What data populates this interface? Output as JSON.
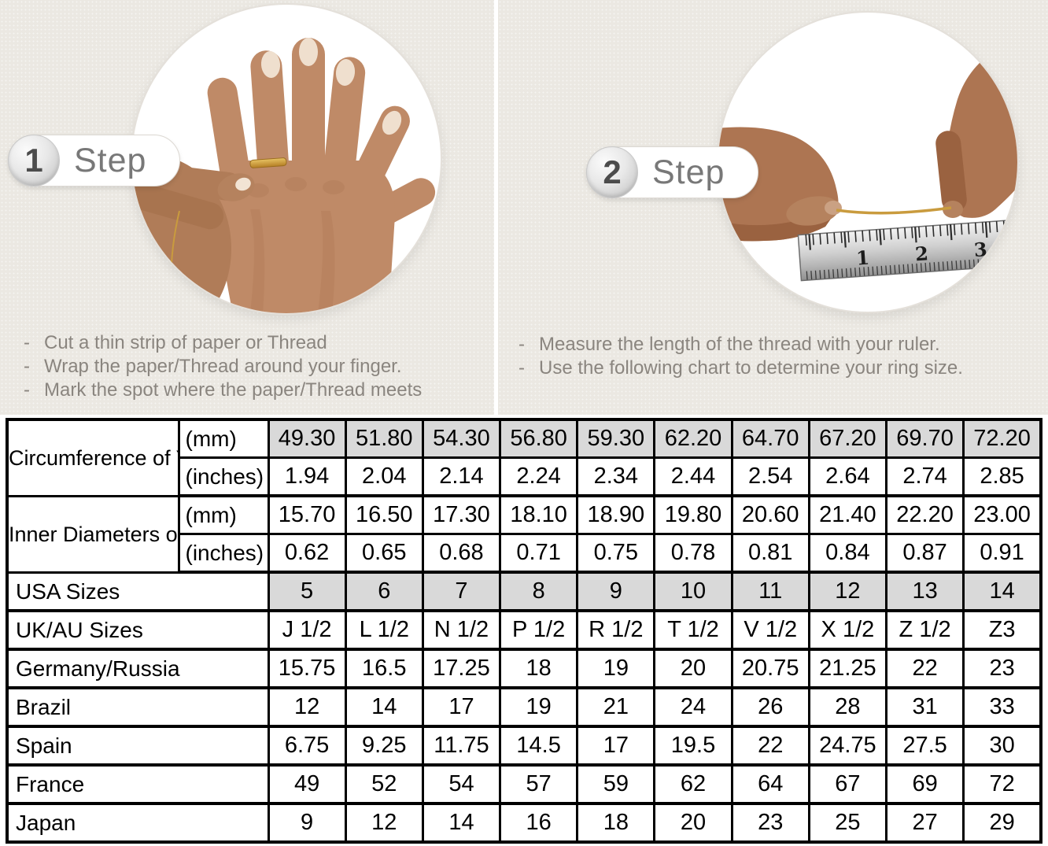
{
  "bullet_dash": "-",
  "steps": [
    {
      "number": "1",
      "label": "Step",
      "bullets": [
        "Cut a thin strip of paper or Thread",
        "Wrap the paper/Thread around your finger.",
        "Mark the spot where the paper/Thread meets"
      ]
    },
    {
      "number": "2",
      "label": "Step",
      "bullets": [
        "Measure the length of the thread with your ruler.",
        "Use the following chart to determine your ring size."
      ]
    }
  ],
  "illustrations": {
    "step1_alt": "hand wearing a ring while another hand fits it",
    "step2_alt": "two hands holding a thread above a ruler",
    "ruler_numbers": [
      "1",
      "2",
      "3"
    ]
  },
  "size_chart": {
    "row_groups": [
      {
        "label": "Circumference of Your Finger",
        "rows": [
          {
            "unit": "(mm)",
            "shaded": true,
            "values": [
              "49.30",
              "51.80",
              "54.30",
              "56.80",
              "59.30",
              "62.20",
              "64.70",
              "67.20",
              "69.70",
              "72.20"
            ]
          },
          {
            "unit": "(inches)",
            "shaded": false,
            "values": [
              "1.94",
              "2.04",
              "2.14",
              "2.24",
              "2.34",
              "2.44",
              "2.54",
              "2.64",
              "2.74",
              "2.85"
            ]
          }
        ]
      },
      {
        "label": "Inner Diameters of Rings",
        "rows": [
          {
            "unit": "(mm)",
            "shaded": false,
            "values": [
              "15.70",
              "16.50",
              "17.30",
              "18.10",
              "18.90",
              "19.80",
              "20.60",
              "21.40",
              "22.20",
              "23.00"
            ]
          },
          {
            "unit": "(inches)",
            "shaded": false,
            "values": [
              "0.62",
              "0.65",
              "0.68",
              "0.71",
              "0.75",
              "0.78",
              "0.81",
              "0.84",
              "0.87",
              "0.91"
            ]
          }
        ]
      }
    ],
    "country_rows": [
      {
        "label": "USA Sizes",
        "shaded": true,
        "values": [
          "5",
          "6",
          "7",
          "8",
          "9",
          "10",
          "11",
          "12",
          "13",
          "14"
        ]
      },
      {
        "label": "UK/AU Sizes",
        "shaded": false,
        "values": [
          "J 1/2",
          "L 1/2",
          "N 1/2",
          "P 1/2",
          "R 1/2",
          "T 1/2",
          "V 1/2",
          "X 1/2",
          "Z 1/2",
          "Z3"
        ]
      },
      {
        "label": "Germany/Russia",
        "shaded": false,
        "values": [
          "15.75",
          "16.5",
          "17.25",
          "18",
          "19",
          "20",
          "20.75",
          "21.25",
          "22",
          "23"
        ]
      },
      {
        "label": "Brazil",
        "shaded": false,
        "values": [
          "12",
          "14",
          "17",
          "19",
          "21",
          "24",
          "26",
          "28",
          "31",
          "33"
        ]
      },
      {
        "label": "Spain",
        "shaded": false,
        "values": [
          "6.75",
          "9.25",
          "11.75",
          "14.5",
          "17",
          "19.5",
          "22",
          "24.75",
          "27.5",
          "30"
        ]
      },
      {
        "label": "France",
        "shaded": false,
        "values": [
          "49",
          "52",
          "54",
          "57",
          "59",
          "62",
          "64",
          "67",
          "69",
          "72"
        ]
      },
      {
        "label": "Japan",
        "shaded": false,
        "values": [
          "9",
          "12",
          "14",
          "16",
          "18",
          "20",
          "23",
          "25",
          "27",
          "29"
        ]
      }
    ]
  },
  "colors": {
    "panel_background": "#ebe8e2",
    "shaded_cell": "#d9d9d9",
    "table_border": "#000000",
    "instruction_text": "#8a857f",
    "thread_gold": "#c99b3e"
  }
}
